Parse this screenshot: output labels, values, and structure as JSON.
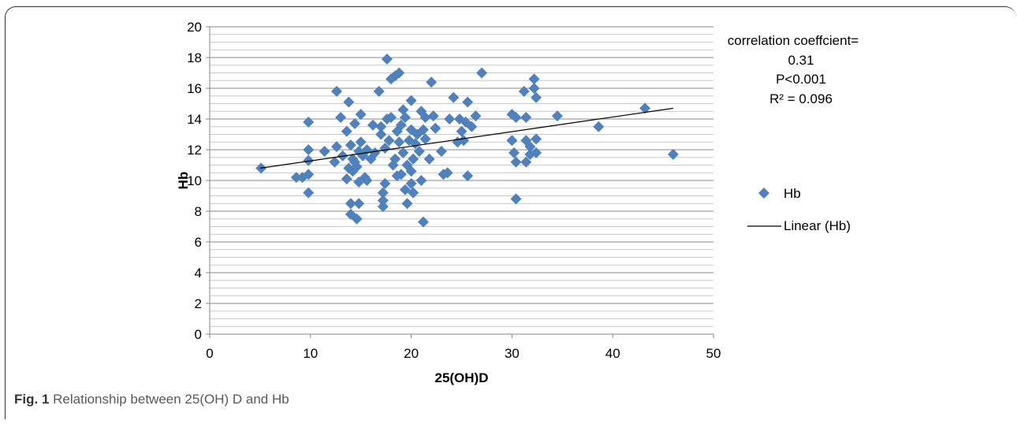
{
  "caption": {
    "label": "Fig. 1",
    "text": "Relationship between 25(OH) D and Hb"
  },
  "annotation": [
    "correlation coeffcient=",
    "0.31",
    "P<0.001",
    "R² = 0.096"
  ],
  "chart_data": {
    "type": "scatter",
    "xlabel": "25(OH)D",
    "ylabel": "Hb",
    "xlim": [
      0,
      50
    ],
    "ylim": [
      0,
      20
    ],
    "xticks": [
      0,
      10,
      20,
      30,
      40,
      50
    ],
    "yticks": [
      0,
      2,
      4,
      6,
      8,
      10,
      12,
      14,
      16,
      18,
      20
    ],
    "grid": "horizontal",
    "legend_position": "right",
    "marker_color": "#4f81bd",
    "trend_color": "#000000",
    "series": [
      {
        "name": "Hb",
        "marker": "diamond",
        "points": [
          [
            5.1,
            10.8
          ],
          [
            8.6,
            10.2
          ],
          [
            9.2,
            10.2
          ],
          [
            9.8,
            10.4
          ],
          [
            9.8,
            9.2
          ],
          [
            9.8,
            11.3
          ],
          [
            9.8,
            12.0
          ],
          [
            9.8,
            13.8
          ],
          [
            11.4,
            11.9
          ],
          [
            12.4,
            11.2
          ],
          [
            12.6,
            12.2
          ],
          [
            12.6,
            15.8
          ],
          [
            13.0,
            14.1
          ],
          [
            13.2,
            11.6
          ],
          [
            13.6,
            10.1
          ],
          [
            13.6,
            13.2
          ],
          [
            13.8,
            10.8
          ],
          [
            13.8,
            15.1
          ],
          [
            14.0,
            8.5
          ],
          [
            14.0,
            7.8
          ],
          [
            14.0,
            12.3
          ],
          [
            14.2,
            11.4
          ],
          [
            14.2,
            10.6
          ],
          [
            14.4,
            11.2
          ],
          [
            14.4,
            13.7
          ],
          [
            14.6,
            7.5
          ],
          [
            14.6,
            10.9
          ],
          [
            14.8,
            8.5
          ],
          [
            14.8,
            9.9
          ],
          [
            14.8,
            11.9
          ],
          [
            15.0,
            12.5
          ],
          [
            15.0,
            14.3
          ],
          [
            15.2,
            11.6
          ],
          [
            15.4,
            10.2
          ],
          [
            15.6,
            10.0
          ],
          [
            15.6,
            12.0
          ],
          [
            16.0,
            11.4
          ],
          [
            16.2,
            13.6
          ],
          [
            16.4,
            11.8
          ],
          [
            16.8,
            15.8
          ],
          [
            17.0,
            13.0
          ],
          [
            17.0,
            13.5
          ],
          [
            17.2,
            9.2
          ],
          [
            17.2,
            8.7
          ],
          [
            17.2,
            8.3
          ],
          [
            17.4,
            12.1
          ],
          [
            17.4,
            9.8
          ],
          [
            17.6,
            17.9
          ],
          [
            17.6,
            14.0
          ],
          [
            17.8,
            12.6
          ],
          [
            18.0,
            14.1
          ],
          [
            18.0,
            16.6
          ],
          [
            18.2,
            11.0
          ],
          [
            18.4,
            11.4
          ],
          [
            18.4,
            16.8
          ],
          [
            18.6,
            10.3
          ],
          [
            18.6,
            13.2
          ],
          [
            18.8,
            17.0
          ],
          [
            18.8,
            12.5
          ],
          [
            19.0,
            10.4
          ],
          [
            19.0,
            13.6
          ],
          [
            19.2,
            14.6
          ],
          [
            19.2,
            11.8
          ],
          [
            19.4,
            9.4
          ],
          [
            19.4,
            14.1
          ],
          [
            19.6,
            8.5
          ],
          [
            19.6,
            11.0
          ],
          [
            19.8,
            12.6
          ],
          [
            20.0,
            9.8
          ],
          [
            20.0,
            10.6
          ],
          [
            20.0,
            13.3
          ],
          [
            20.0,
            15.2
          ],
          [
            20.2,
            9.2
          ],
          [
            20.2,
            11.4
          ],
          [
            20.4,
            12.4
          ],
          [
            20.6,
            13.0
          ],
          [
            20.8,
            11.9
          ],
          [
            21.0,
            14.5
          ],
          [
            21.0,
            10.0
          ],
          [
            21.2,
            7.3
          ],
          [
            21.2,
            13.3
          ],
          [
            21.4,
            12.7
          ],
          [
            21.4,
            14.1
          ],
          [
            21.8,
            11.4
          ],
          [
            22.0,
            16.4
          ],
          [
            22.2,
            14.2
          ],
          [
            22.4,
            13.4
          ],
          [
            23.0,
            11.9
          ],
          [
            23.2,
            10.4
          ],
          [
            23.6,
            10.5
          ],
          [
            23.8,
            14.0
          ],
          [
            24.2,
            15.4
          ],
          [
            24.6,
            12.5
          ],
          [
            24.8,
            14.0
          ],
          [
            25.0,
            13.2
          ],
          [
            25.2,
            12.6
          ],
          [
            25.4,
            13.8
          ],
          [
            25.6,
            15.1
          ],
          [
            25.6,
            10.3
          ],
          [
            26.0,
            13.5
          ],
          [
            26.4,
            14.2
          ],
          [
            27.0,
            17.0
          ],
          [
            30.0,
            14.3
          ],
          [
            30.0,
            12.6
          ],
          [
            30.2,
            11.8
          ],
          [
            30.4,
            14.1
          ],
          [
            30.4,
            8.8
          ],
          [
            30.4,
            11.2
          ],
          [
            31.2,
            15.8
          ],
          [
            31.4,
            12.6
          ],
          [
            31.4,
            11.2
          ],
          [
            31.4,
            14.1
          ],
          [
            31.8,
            11.7
          ],
          [
            31.8,
            12.2
          ],
          [
            32.2,
            16.6
          ],
          [
            32.2,
            16.0
          ],
          [
            32.4,
            15.4
          ],
          [
            32.4,
            12.7
          ],
          [
            32.4,
            11.8
          ],
          [
            34.5,
            14.2
          ],
          [
            38.6,
            13.5
          ],
          [
            43.2,
            14.7
          ],
          [
            46.0,
            11.7
          ]
        ]
      },
      {
        "name": "Linear (Hb)",
        "type": "line",
        "x": [
          5,
          46
        ],
        "y": [
          10.8,
          14.7
        ]
      }
    ]
  }
}
